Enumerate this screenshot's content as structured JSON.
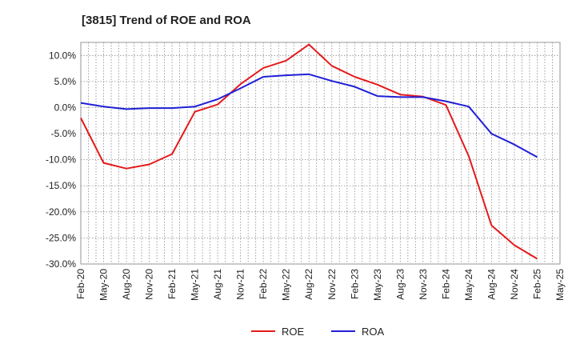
{
  "chart_data": {
    "type": "line",
    "title": "[3815]  Trend of ROE and ROA",
    "xlabel": "",
    "ylabel": "",
    "categories": [
      "Feb-20",
      "May-20",
      "Aug-20",
      "Nov-20",
      "Feb-21",
      "May-21",
      "Aug-21",
      "Nov-21",
      "Feb-22",
      "May-22",
      "Aug-22",
      "Nov-22",
      "Feb-23",
      "May-23",
      "Aug-23",
      "Nov-23",
      "Feb-24",
      "May-24",
      "Aug-24",
      "Nov-24",
      "Feb-25",
      "May-25"
    ],
    "ylim": [
      -30,
      12.5
    ],
    "yticks": [
      10,
      5,
      0,
      -5,
      -10,
      -15,
      -20,
      -25,
      -30
    ],
    "ytick_labels": [
      "10.0%",
      "5.0%",
      "0.0%",
      "-5.0%",
      "-10.0%",
      "-15.0%",
      "-20.0%",
      "-25.0%",
      "-30.0%"
    ],
    "grid": true,
    "legend_position": "bottom",
    "series": [
      {
        "name": "ROE",
        "color": "#e31a1c",
        "values": [
          -2.0,
          -10.6,
          -11.7,
          -10.9,
          -8.9,
          -0.8,
          0.6,
          4.5,
          7.6,
          9.0,
          12.1,
          8.0,
          5.9,
          4.4,
          2.5,
          2.1,
          0.5,
          -9.3,
          -22.6,
          -26.4,
          -29.0,
          null
        ]
      },
      {
        "name": "ROA",
        "color": "#1f1fd6",
        "values": [
          0.9,
          0.2,
          -0.3,
          -0.1,
          -0.1,
          0.2,
          1.6,
          3.7,
          5.9,
          6.2,
          6.4,
          5.1,
          4.0,
          2.2,
          2.0,
          2.0,
          1.2,
          0.2,
          -5.0,
          -7.1,
          -9.5,
          null
        ]
      }
    ]
  }
}
